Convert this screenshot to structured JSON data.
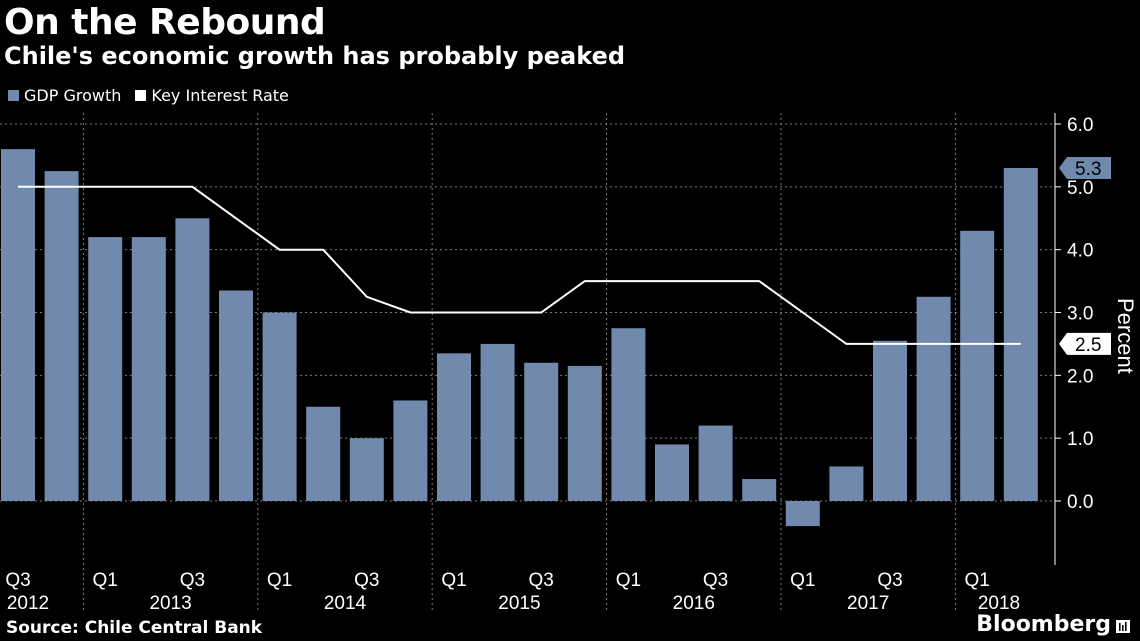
{
  "header": {
    "title": "On the Rebound",
    "subtitle": "Chile's economic growth has probably peaked"
  },
  "legend": [
    {
      "label": "GDP Growth",
      "color": "#7189ad"
    },
    {
      "label": "Key Interest Rate",
      "color": "#ffffff"
    }
  ],
  "footer": {
    "source": "Source: Chile Central Bank",
    "brand": "Bloomberg"
  },
  "chart_data": {
    "type": "bar",
    "title": "On the Rebound",
    "subtitle": "Chile's economic growth has probably peaked",
    "ylabel": "Percent",
    "ylim": [
      -0.9,
      6.0
    ],
    "yticks": [
      0.0,
      1.0,
      2.0,
      3.0,
      4.0,
      5.0,
      6.0
    ],
    "categories": [
      "Q3 2012",
      "Q4 2012",
      "Q1 2013",
      "Q2 2013",
      "Q3 2013",
      "Q4 2013",
      "Q1 2014",
      "Q2 2014",
      "Q3 2014",
      "Q4 2014",
      "Q1 2015",
      "Q2 2015",
      "Q3 2015",
      "Q4 2015",
      "Q1 2016",
      "Q2 2016",
      "Q3 2016",
      "Q4 2016",
      "Q1 2017",
      "Q2 2017",
      "Q3 2017",
      "Q4 2017",
      "Q1 2018",
      "Q2 2018"
    ],
    "series": [
      {
        "name": "GDP Growth",
        "type": "bar",
        "color": "#7189ad",
        "values": [
          5.6,
          5.25,
          4.2,
          4.2,
          4.5,
          3.35,
          3.0,
          1.5,
          1.0,
          1.6,
          2.35,
          2.5,
          2.2,
          2.15,
          2.75,
          0.9,
          1.2,
          0.35,
          -0.4,
          0.55,
          2.55,
          3.25,
          4.3,
          5.3
        ]
      },
      {
        "name": "Key Interest Rate",
        "type": "line",
        "color": "#ffffff",
        "values": [
          5.0,
          5.0,
          5.0,
          5.0,
          5.0,
          4.5,
          4.0,
          4.0,
          3.25,
          3.0,
          3.0,
          3.0,
          3.0,
          3.5,
          3.5,
          3.5,
          3.5,
          3.5,
          3.0,
          2.5,
          2.5,
          2.5,
          2.5,
          2.5
        ]
      }
    ],
    "x_tick_labels": [
      {
        "label": "Q3",
        "index": 0
      },
      {
        "label": "Q1",
        "index": 2
      },
      {
        "label": "Q3",
        "index": 4
      },
      {
        "label": "Q1",
        "index": 6
      },
      {
        "label": "Q3",
        "index": 8
      },
      {
        "label": "Q1",
        "index": 10
      },
      {
        "label": "Q3",
        "index": 12
      },
      {
        "label": "Q1",
        "index": 14
      },
      {
        "label": "Q3",
        "index": 16
      },
      {
        "label": "Q1",
        "index": 18
      },
      {
        "label": "Q3",
        "index": 20
      },
      {
        "label": "Q1",
        "index": 22
      }
    ],
    "years": [
      {
        "label": "2012",
        "first": 0,
        "last": 1
      },
      {
        "label": "2013",
        "first": 2,
        "last": 5
      },
      {
        "label": "2014",
        "first": 6,
        "last": 9
      },
      {
        "label": "2015",
        "first": 10,
        "last": 13
      },
      {
        "label": "2016",
        "first": 14,
        "last": 17
      },
      {
        "label": "2017",
        "first": 18,
        "last": 21
      },
      {
        "label": "2018",
        "first": 22,
        "last": 23
      }
    ],
    "callouts": [
      {
        "series": "GDP Growth",
        "label": "5.3",
        "value": 5.3,
        "color": "#7189ad"
      },
      {
        "series": "Key Interest Rate",
        "label": "2.5",
        "value": 2.5,
        "color": "#ffffff"
      }
    ]
  }
}
